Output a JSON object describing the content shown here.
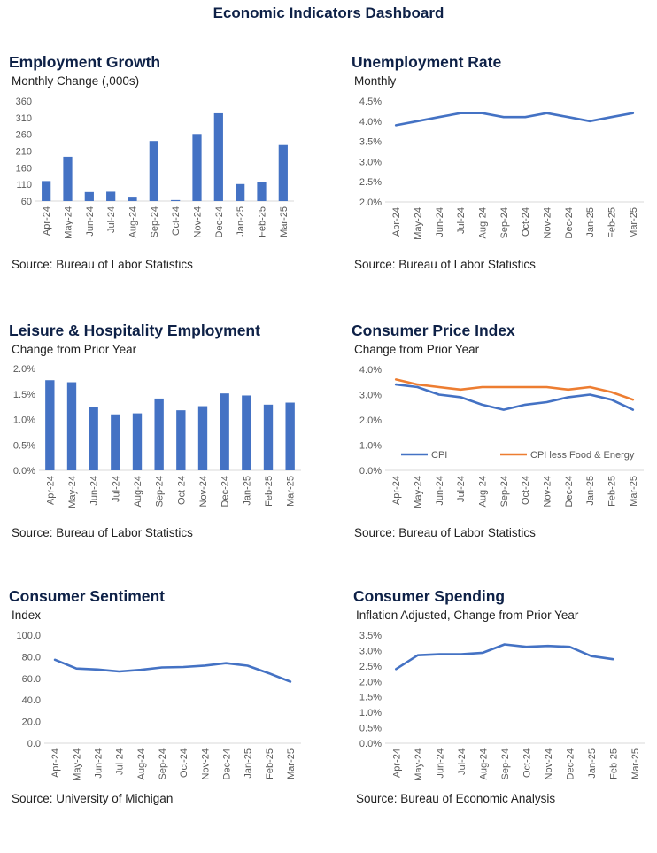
{
  "dashboard": {
    "title": "Economic Indicators Dashboard"
  },
  "colors": {
    "title": "#0e2147",
    "primary": "#4472c4",
    "secondary": "#ed7d31",
    "axis": "#d9d9d9"
  },
  "months": [
    "Apr-24",
    "May-24",
    "Jun-24",
    "Jul-24",
    "Aug-24",
    "Sep-24",
    "Oct-24",
    "Nov-24",
    "Dec-24",
    "Jan-25",
    "Feb-25",
    "Mar-25"
  ],
  "chart_data": [
    {
      "id": "employment_growth",
      "type": "bar",
      "title": "Employment Growth",
      "subtitle": "Monthly Change (,000s)",
      "source": "Source: Bureau of Labor Statistics",
      "categories": [
        "Apr-24",
        "May-24",
        "Jun-24",
        "Jul-24",
        "Aug-24",
        "Sep-24",
        "Oct-24",
        "Nov-24",
        "Dec-24",
        "Jan-25",
        "Feb-25",
        "Mar-25"
      ],
      "values": [
        120,
        193,
        87,
        88,
        73,
        240,
        63,
        261,
        323,
        111,
        117,
        228
      ],
      "ylim": [
        60,
        360
      ],
      "yticks": [
        "60",
        "110",
        "160",
        "210",
        "260",
        "310",
        "360"
      ],
      "ytick_values": [
        60,
        110,
        160,
        210,
        260,
        310,
        360
      ]
    },
    {
      "id": "unemployment_rate",
      "type": "line",
      "title": "Unemployment Rate",
      "subtitle": "Monthly",
      "source": "Source: Bureau of Labor Statistics",
      "categories": [
        "Apr-24",
        "May-24",
        "Jun-24",
        "Jul-24",
        "Aug-24",
        "Sep-24",
        "Oct-24",
        "Nov-24",
        "Dec-24",
        "Jan-25",
        "Feb-25",
        "Mar-25"
      ],
      "series": [
        {
          "values": [
            3.9,
            4.0,
            4.1,
            4.2,
            4.2,
            4.1,
            4.1,
            4.2,
            4.1,
            4.0,
            4.1,
            4.2
          ]
        }
      ],
      "ylim": [
        2.0,
        4.5
      ],
      "yticks": [
        "2.0%",
        "2.5%",
        "3.0%",
        "3.5%",
        "4.0%",
        "4.5%"
      ],
      "ytick_values": [
        2.0,
        2.5,
        3.0,
        3.5,
        4.0,
        4.5
      ]
    },
    {
      "id": "leisure_hospitality",
      "type": "bar",
      "title": "Leisure & Hospitality Employment",
      "subtitle": "Change from Prior Year",
      "source": "Source: Bureau of Labor Statistics",
      "categories": [
        "Apr-24",
        "May-24",
        "Jun-24",
        "Jul-24",
        "Aug-24",
        "Sep-24",
        "Oct-24",
        "Nov-24",
        "Dec-24",
        "Jan-25",
        "Feb-25",
        "Mar-25"
      ],
      "values": [
        1.77,
        1.73,
        1.24,
        1.1,
        1.12,
        1.41,
        1.18,
        1.26,
        1.51,
        1.47,
        1.29,
        1.33
      ],
      "ylim": [
        0,
        2.0
      ],
      "yticks": [
        "0.0%",
        "0.5%",
        "1.0%",
        "1.5%",
        "2.0%"
      ],
      "ytick_values": [
        0,
        0.5,
        1.0,
        1.5,
        2.0
      ]
    },
    {
      "id": "cpi",
      "type": "line",
      "title": "Consumer Price Index",
      "subtitle": "Change from Prior Year",
      "source": "Source: Bureau of Labor Statistics",
      "categories": [
        "Apr-24",
        "May-24",
        "Jun-24",
        "Jul-24",
        "Aug-24",
        "Sep-24",
        "Oct-24",
        "Nov-24",
        "Dec-24",
        "Jan-25",
        "Feb-25",
        "Mar-25"
      ],
      "series": [
        {
          "name": "CPI",
          "values": [
            3.4,
            3.3,
            3.0,
            2.9,
            2.6,
            2.4,
            2.6,
            2.7,
            2.9,
            3.0,
            2.8,
            2.4
          ]
        },
        {
          "name": "CPI less Food & Energy",
          "values": [
            3.6,
            3.4,
            3.3,
            3.2,
            3.3,
            3.3,
            3.3,
            3.3,
            3.2,
            3.3,
            3.1,
            2.8
          ]
        }
      ],
      "legend": "bottom",
      "ylim": [
        0,
        4.0
      ],
      "yticks": [
        "0.0%",
        "1.0%",
        "2.0%",
        "3.0%",
        "4.0%"
      ],
      "ytick_values": [
        0,
        1.0,
        2.0,
        3.0,
        4.0
      ]
    },
    {
      "id": "consumer_sentiment",
      "type": "line",
      "title": "Consumer Sentiment",
      "subtitle": "Index",
      "source": "Source: University of Michigan",
      "categories": [
        "Apr-24",
        "May-24",
        "Jun-24",
        "Jul-24",
        "Aug-24",
        "Sep-24",
        "Oct-24",
        "Nov-24",
        "Dec-24",
        "Jan-25",
        "Feb-25",
        "Mar-25"
      ],
      "series": [
        {
          "values": [
            77.2,
            69.1,
            68.2,
            66.4,
            67.9,
            70.1,
            70.5,
            71.8,
            74.0,
            71.7,
            64.7,
            57.0
          ]
        }
      ],
      "ylim": [
        0,
        100
      ],
      "yticks": [
        "0.0",
        "20.0",
        "40.0",
        "60.0",
        "80.0",
        "100.0"
      ],
      "ytick_values": [
        0,
        20,
        40,
        60,
        80,
        100
      ]
    },
    {
      "id": "consumer_spending",
      "type": "line",
      "title": "Consumer Spending",
      "subtitle": "Inflation Adjusted, Change from Prior Year",
      "source": "Source: Bureau of Economic Analysis",
      "categories": [
        "Apr-24",
        "May-24",
        "Jun-24",
        "Jul-24",
        "Aug-24",
        "Sep-24",
        "Oct-24",
        "Nov-24",
        "Dec-24",
        "Jan-25",
        "Feb-25",
        "Mar-25"
      ],
      "series": [
        {
          "values": [
            2.4,
            2.85,
            2.88,
            2.88,
            2.93,
            3.2,
            3.12,
            3.15,
            3.12,
            2.82,
            2.72,
            null
          ]
        }
      ],
      "ylim": [
        0,
        3.5
      ],
      "yticks": [
        "0.0%",
        "0.5%",
        "1.0%",
        "1.5%",
        "2.0%",
        "2.5%",
        "3.0%",
        "3.5%"
      ],
      "ytick_values": [
        0,
        0.5,
        1.0,
        1.5,
        2.0,
        2.5,
        3.0,
        3.5
      ]
    }
  ]
}
